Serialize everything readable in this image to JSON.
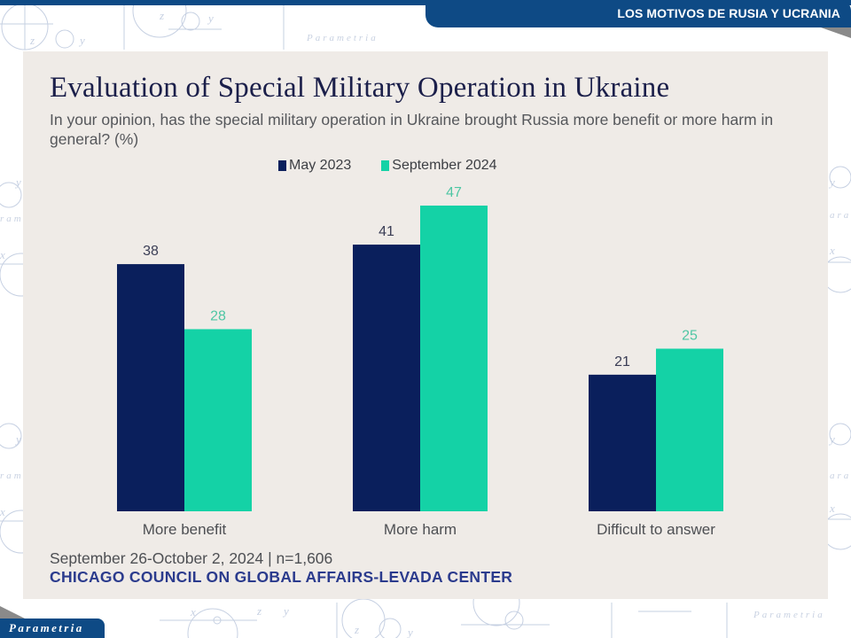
{
  "header": {
    "title": "LOS MOTIVOS DE RUSIA Y UCRANIA"
  },
  "brand": {
    "logo_text": "Parametria",
    "watermark_text": "Parametria"
  },
  "colors": {
    "header_bg": "#0e4a85",
    "series_1": "#0a1f5c",
    "series_2": "#14d2a6",
    "source_text": "#2b3b8d",
    "panel_bg": "#efebe7"
  },
  "chart_data": {
    "type": "bar",
    "title": "Evaluation of Special Military Operation in Ukraine",
    "subtitle": "In your opinion, has the special military operation in Ukraine brought Russia more benefit or more harm in general? (%)",
    "categories": [
      "More benefit",
      "More harm",
      "Difficult to answer"
    ],
    "series": [
      {
        "name": "May 2023",
        "values": [
          38,
          41,
          21
        ],
        "color": "#0a1f5c",
        "label_color": "#3a3d55"
      },
      {
        "name": "September 2024",
        "values": [
          28,
          47,
          25
        ],
        "color": "#14d2a6",
        "label_color": "#4fc6a4"
      }
    ],
    "xlabel": "",
    "ylabel": "",
    "ylim": [
      0,
      47
    ],
    "grid": false,
    "legend_position": "top-center",
    "footnote": "September 26-October 2, 2024 | n=1,606",
    "source": "CHICAGO COUNCIL ON GLOBAL AFFAIRS-LEVADA CENTER"
  }
}
